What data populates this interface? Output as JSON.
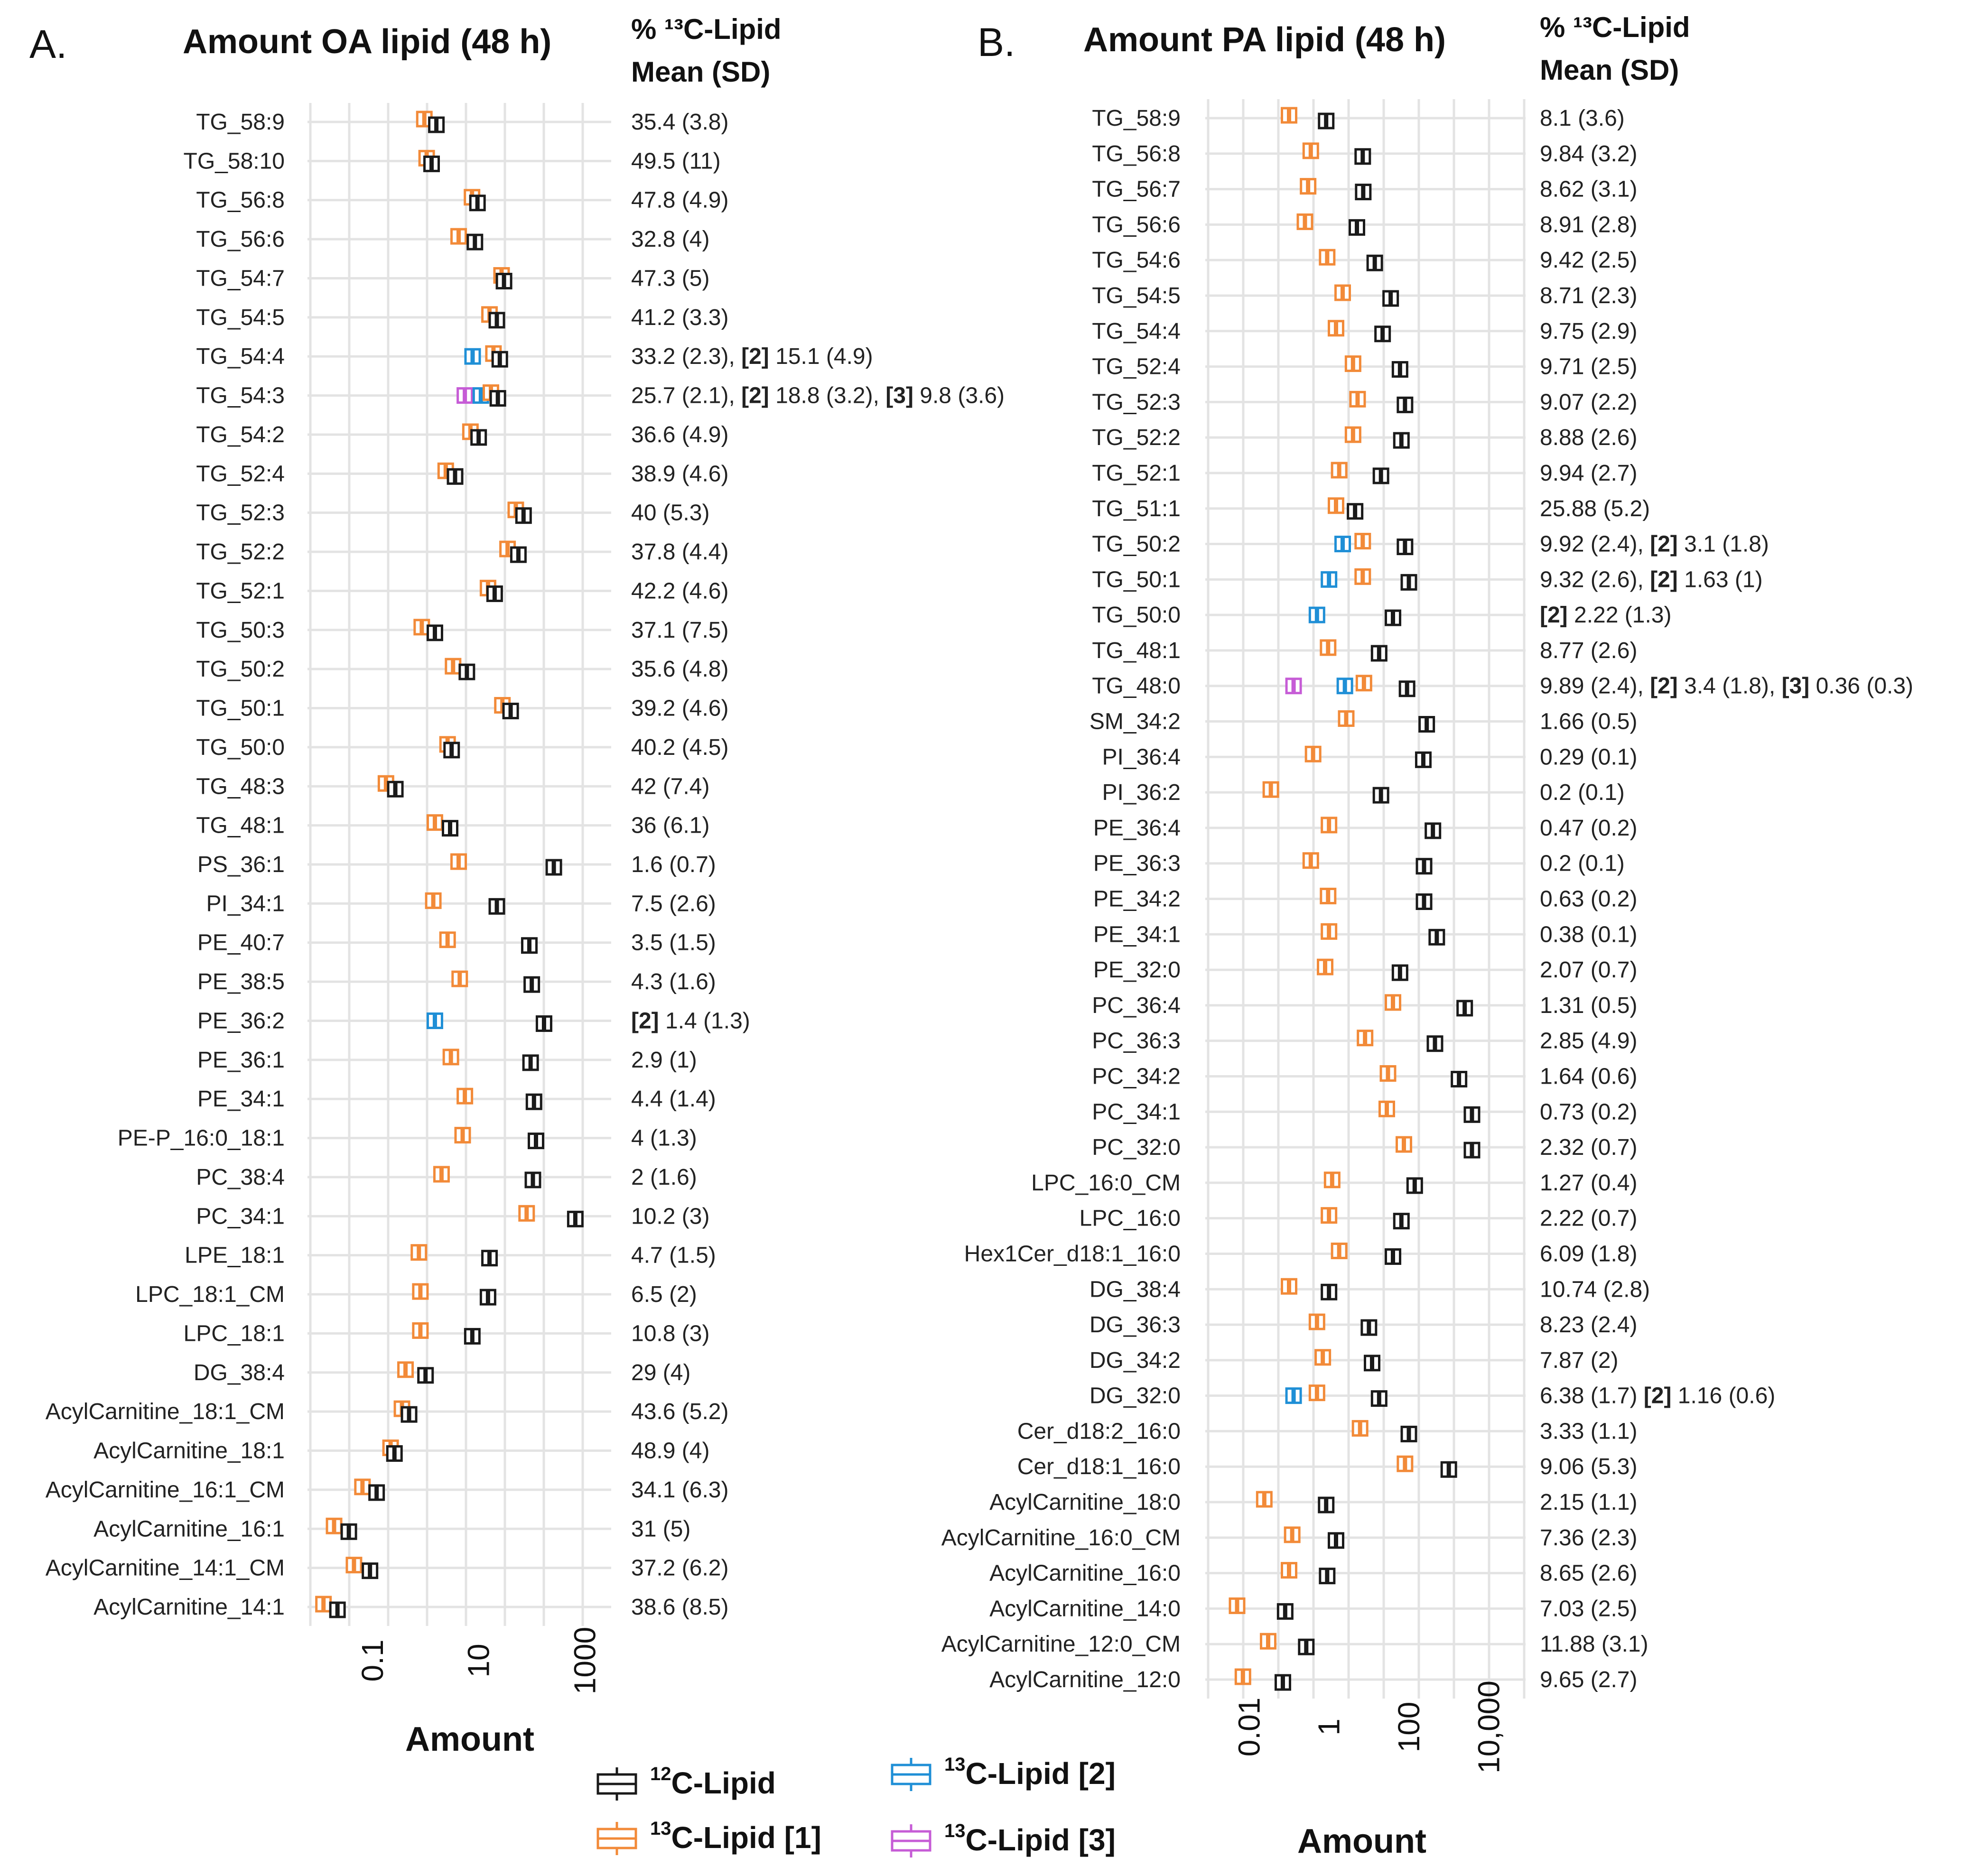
{
  "colors": {
    "c12": "#1a1a1a",
    "l1": "#f28a38",
    "l2": "#1f8fd6",
    "l3": "#c65cd6",
    "grid": "#e3e3e3"
  },
  "chart_data": [
    {
      "type": "boxplot",
      "panel_label": "A.",
      "title": "Amount OA  lipid (48 h)",
      "pct_header_line1": "% ¹³C-Lipid",
      "pct_header_line2": "Mean (SD)",
      "xlabel": "Amount",
      "xscale": "log10",
      "xlim": [
        0.006,
        4000
      ],
      "x_ticks": [
        {
          "value": 0.1,
          "label": "0.1"
        },
        {
          "value": 10,
          "label": "10"
        },
        {
          "value": 1000,
          "label": "1000"
        }
      ],
      "rows": [
        {
          "label": "TG_58:9",
          "pct": "35.4 (3.8)",
          "c12": 1.6,
          "l1": 0.95
        },
        {
          "label": "TG_58:10",
          "pct": "49.5 (11)",
          "c12": 1.3,
          "l1": 1.05
        },
        {
          "label": "TG_56:8",
          "pct": "47.8 (4.9)",
          "c12": 9.5,
          "l1": 7.5
        },
        {
          "label": "TG_56:6",
          "pct": "32.8 (4)",
          "c12": 8.5,
          "l1": 4.2
        },
        {
          "label": "TG_54:7",
          "pct": "47.3 (5)",
          "c12": 30,
          "l1": 27
        },
        {
          "label": "TG_54:5",
          "pct": "41.2 (3.3)",
          "c12": 22,
          "l1": 16
        },
        {
          "label": "TG_54:4",
          "pct": "33.2 (2.3), [2] 15.1 (4.9)",
          "c12": 25,
          "l1": 19,
          "l2": 7.7
        },
        {
          "label": "TG_54:3",
          "pct": "25.7 (2.1), [2] 18.8 (3.2), [3] 9.8 (3.6)",
          "c12": 23,
          "l1": 17,
          "l2": 11,
          "l3": 5.5
        },
        {
          "label": "TG_54:2",
          "pct": "36.6 (4.9)",
          "c12": 10,
          "l1": 7.0
        },
        {
          "label": "TG_52:4",
          "pct": "38.9 (4.6)",
          "c12": 3.6,
          "l1": 2.4
        },
        {
          "label": "TG_52:3",
          "pct": "40 (5.3)",
          "c12": 70,
          "l1": 50
        },
        {
          "label": "TG_52:2",
          "pct": "37.8 (4.4)",
          "c12": 56,
          "l1": 35
        },
        {
          "label": "TG_52:1",
          "pct": "42.2 (4.6)",
          "c12": 20,
          "l1": 15
        },
        {
          "label": "TG_50:3",
          "pct": "37.1 (7.5)",
          "c12": 1.5,
          "l1": 0.85
        },
        {
          "label": "TG_50:2",
          "pct": "35.6 (4.8)",
          "c12": 6.0,
          "l1": 3.3
        },
        {
          "label": "TG_50:1",
          "pct": "39.2 (4.6)",
          "c12": 40,
          "l1": 28
        },
        {
          "label": "TG_50:0",
          "pct": "40.2 (4.5)",
          "c12": 3.1,
          "l1": 2.6
        },
        {
          "label": "TG_48:3",
          "pct": "42 (7.4)",
          "c12": 0.27,
          "l1": 0.18
        },
        {
          "label": "TG_48:1",
          "pct": "36 (6.1)",
          "c12": 2.9,
          "l1": 1.5
        },
        {
          "label": "PS_36:1",
          "pct": "1.6 (0.7)",
          "c12": 260,
          "l1": 4.2
        },
        {
          "label": "PI_34:1",
          "pct": "7.5 (2.6)",
          "c12": 22,
          "l1": 1.4
        },
        {
          "label": "PE_40:7",
          "pct": "3.5 (1.5)",
          "c12": 90,
          "l1": 2.6
        },
        {
          "label": "PE_38:5",
          "pct": "4.3 (1.6)",
          "c12": 100,
          "l1": 4.4
        },
        {
          "label": "PE_36:2",
          "pct": "[2] 1.4 (1.3)",
          "c12": 170,
          "l2": 1.5
        },
        {
          "label": "PE_36:1",
          "pct": "2.9 (1)",
          "c12": 95,
          "l1": 3.0
        },
        {
          "label": "PE_34:1",
          "pct": "4.4 (1.4)",
          "c12": 110,
          "l1": 5.5
        },
        {
          "label": "PE-P_16:0_18:1",
          "pct": "4 (1.3)",
          "c12": 120,
          "l1": 5.0
        },
        {
          "label": "PC_38:4",
          "pct": "2 (1.6)",
          "c12": 105,
          "l1": 2.0
        },
        {
          "label": "PC_34:1",
          "pct": "10.2 (3)",
          "c12": 660,
          "l1": 80
        },
        {
          "label": "LPE_18:1",
          "pct": "4.7 (1.5)",
          "c12": 16,
          "l1": 0.75
        },
        {
          "label": "LPC_18:1_CM",
          "pct": "6.5 (2)",
          "c12": 15,
          "l1": 0.8
        },
        {
          "label": "LPC_18:1",
          "pct": "10.8 (3)",
          "c12": 7.6,
          "l1": 0.8
        },
        {
          "label": "DG_38:4",
          "pct": "29 (4)",
          "c12": 1.0,
          "l1": 0.42
        },
        {
          "label": "AcylCarnitine_18:1_CM",
          "pct": "43.6 (5.2)",
          "c12": 0.49,
          "l1": 0.36
        },
        {
          "label": "AcylCarnitine_18:1",
          "pct": "48.9 (4)",
          "c12": 0.26,
          "l1": 0.22
        },
        {
          "label": "AcylCarnitine_16:1_CM",
          "pct": "34.1 (6.3)",
          "c12": 0.12,
          "l1": 0.065
        },
        {
          "label": "AcylCarnitine_16:1",
          "pct": "31 (5)",
          "c12": 0.036,
          "l1": 0.019
        },
        {
          "label": "AcylCarnitine_14:1_CM",
          "pct": "37.2 (6.2)",
          "c12": 0.09,
          "l1": 0.045
        },
        {
          "label": "AcylCarnitine_14:1",
          "pct": "38.6 (8.5)",
          "c12": 0.022,
          "l1": 0.012
        }
      ]
    },
    {
      "type": "boxplot",
      "panel_label": "B.",
      "title": "Amount PA  lipid (48 h)",
      "pct_header_line1": "% ¹³C-Lipid",
      "pct_header_line2": "Mean (SD)",
      "xlabel": "Amount",
      "xscale": "log10",
      "xlim": [
        0.0008,
        110000
      ],
      "x_ticks": [
        {
          "value": 0.01,
          "label": "0.01"
        },
        {
          "value": 1,
          "label": "1"
        },
        {
          "value": 100,
          "label": "100"
        },
        {
          "value": 10000,
          "label": "10,000"
        }
      ],
      "rows": [
        {
          "label": "TG_58:9",
          "pct": "8.1 (3.6)",
          "c12": 0.85,
          "l1": 0.1
        },
        {
          "label": "TG_56:8",
          "pct": "9.84 (3.2)",
          "c12": 7.0,
          "l1": 0.35
        },
        {
          "label": "TG_56:7",
          "pct": "8.62 (3.1)",
          "c12": 7.2,
          "l1": 0.3
        },
        {
          "label": "TG_56:6",
          "pct": "8.91 (2.8)",
          "c12": 5.0,
          "l1": 0.25
        },
        {
          "label": "TG_54:6",
          "pct": "9.42 (2.5)",
          "c12": 14,
          "l1": 0.9
        },
        {
          "label": "TG_54:5",
          "pct": "8.71 (2.3)",
          "c12": 35,
          "l1": 2.2
        },
        {
          "label": "TG_54:4",
          "pct": "9.75 (2.9)",
          "c12": 22,
          "l1": 1.5
        },
        {
          "label": "TG_52:4",
          "pct": "9.71 (2.5)",
          "c12": 60,
          "l1": 4.0
        },
        {
          "label": "TG_52:3",
          "pct": "9.07 (2.2)",
          "c12": 80,
          "l1": 5.2
        },
        {
          "label": "TG_52:2",
          "pct": "8.88 (2.6)",
          "c12": 65,
          "l1": 4.0
        },
        {
          "label": "TG_52:1",
          "pct": "9.94 (2.7)",
          "c12": 20,
          "l1": 1.8
        },
        {
          "label": "TG_51:1",
          "pct": "25.88 (5.2)",
          "c12": 4.5,
          "l1": 1.5
        },
        {
          "label": "TG_50:2",
          "pct": "9.92 (2.4),  [2] 3.1 (1.8)",
          "c12": 80,
          "l1": 7.0,
          "l2": 2.2
        },
        {
          "label": "TG_50:1",
          "pct": "9.32 (2.6), [2] 1.63 (1)",
          "c12": 100,
          "l1": 7.0,
          "l2": 1.0
        },
        {
          "label": "TG_50:0",
          "pct": "[2] 2.22 (1.3)",
          "c12": 40,
          "l2": 0.5
        },
        {
          "label": "TG_48:1",
          "pct": "8.77 (2.6)",
          "c12": 18,
          "l1": 0.95
        },
        {
          "label": "TG_48:0",
          "pct": "9.89 (2.4), [2] 3.4 (1.8),  [3] 0.36 (0.3)",
          "c12": 90,
          "l1": 7.5,
          "l2": 2.5,
          "l3": 0.13
        },
        {
          "label": "SM_34:2",
          "pct": "1.66 (0.5)",
          "c12": 280,
          "l1": 2.7
        },
        {
          "label": "PI_36:4",
          "pct": "0.29 (0.1)",
          "c12": 230,
          "l1": 0.4
        },
        {
          "label": "PI_36:2",
          "pct": "0.2 (0.1)",
          "c12": 20,
          "l1": 0.035
        },
        {
          "label": "PE_36:4",
          "pct": "0.47 (0.2)",
          "c12": 400,
          "l1": 1.0
        },
        {
          "label": "PE_36:3",
          "pct": "0.2 (0.1)",
          "c12": 240,
          "l1": 0.35
        },
        {
          "label": "PE_34:2",
          "pct": "0.63 (0.2)",
          "c12": 240,
          "l1": 0.95
        },
        {
          "label": "PE_34:1",
          "pct": "0.38 (0.1)",
          "c12": 500,
          "l1": 1.0
        },
        {
          "label": "PE_32:0",
          "pct": "2.07 (0.7)",
          "c12": 60,
          "l1": 0.8
        },
        {
          "label": "PC_36:4",
          "pct": "1.31 (0.5)",
          "c12": 2500,
          "l1": 40
        },
        {
          "label": "PC_36:3",
          "pct": "2.85 (4.9)",
          "c12": 450,
          "l1": 8.0
        },
        {
          "label": "PC_34:2",
          "pct": "1.64 (0.6)",
          "c12": 1800,
          "l1": 30
        },
        {
          "label": "PC_34:1",
          "pct": "0.73 (0.2)",
          "c12": 3800,
          "l1": 28
        },
        {
          "label": "PC_32:0",
          "pct": "2.32 (0.7)",
          "c12": 3800,
          "l1": 75
        },
        {
          "label": "LPC_16:0_CM",
          "pct": "1.27 (0.4)",
          "c12": 140,
          "l1": 1.2
        },
        {
          "label": "LPC_16:0",
          "pct": "2.22 (0.7)",
          "c12": 65,
          "l1": 1.0
        },
        {
          "label": "Hex1Cer_d18:1_16:0",
          "pct": "6.09 (1.8)",
          "c12": 40,
          "l1": 1.8
        },
        {
          "label": "DG_38:4",
          "pct": "10.74 (2.8)",
          "c12": 1.0,
          "l1": 0.1
        },
        {
          "label": "DG_36:3",
          "pct": "8.23 (2.4)",
          "c12": 10,
          "l1": 0.5
        },
        {
          "label": "DG_34:2",
          "pct": "7.87 (2)",
          "c12": 12,
          "l1": 0.7
        },
        {
          "label": "DG_32:0",
          "pct": "6.38 (1.7) [2] 1.16 (0.6)",
          "c12": 18,
          "l1": 0.5,
          "l2": 0.13
        },
        {
          "label": "Cer_d18:2_16:0",
          "pct": "3.33 (1.1)",
          "c12": 100,
          "l1": 6.0
        },
        {
          "label": "Cer_d18:1_16:0",
          "pct": "9.06 (5.3)",
          "c12": 1000,
          "l1": 80
        },
        {
          "label": "AcylCarnitine_18:0",
          "pct": "2.15 (1.1)",
          "c12": 0.85,
          "l1": 0.024
        },
        {
          "label": "AcylCarnitine_16:0_CM",
          "pct": "7.36 (2.3)",
          "c12": 1.5,
          "l1": 0.12
        },
        {
          "label": "AcylCarnitine_16:0",
          "pct": "8.65 (2.6)",
          "c12": 0.9,
          "l1": 0.1
        },
        {
          "label": "AcylCarnitine_14:0",
          "pct": "7.03 (2.5)",
          "c12": 0.08,
          "l1": 0.005
        },
        {
          "label": "AcylCarnitine_12:0_CM",
          "pct": "11.88 (3.1)",
          "c12": 0.27,
          "l1": 0.03
        },
        {
          "label": "AcylCarnitine_12:0",
          "pct": "9.65 (2.7)",
          "c12": 0.07,
          "l1": 0.007
        }
      ]
    }
  ],
  "legend": {
    "items": [
      {
        "key": "c12",
        "sup": "12",
        "text": "C-Lipid"
      },
      {
        "key": "l2",
        "sup": "13",
        "text": "C-Lipid [2]"
      },
      {
        "key": "l1",
        "sup": "13",
        "text": "C-Lipid [1]"
      },
      {
        "key": "l3",
        "sup": "13",
        "text": "C-Lipid [3]"
      }
    ]
  }
}
